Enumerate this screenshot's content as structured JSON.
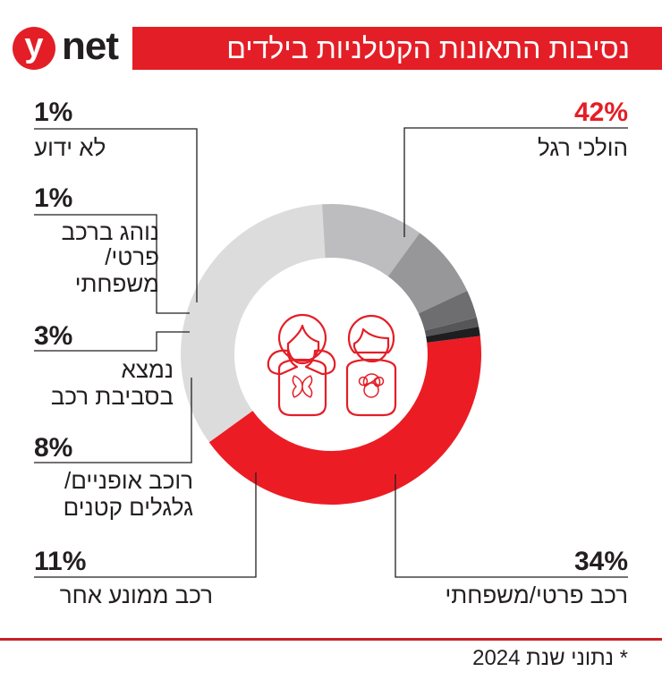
{
  "header": {
    "logo_letter": "y",
    "logo_text": "net",
    "title": "נסיבות התאונות הקטלניות בילדים"
  },
  "colors": {
    "accent_red": "#e41e26",
    "pedestrian": "#ec1c24",
    "private_car": "#dcdcdc",
    "other_motor": "#bdbdbf",
    "bicycle": "#97979a",
    "near_car": "#6e6e71",
    "driver": "#565658",
    "unknown": "#1e1e20"
  },
  "labels": {
    "unknown": {
      "pct": "1%",
      "text": "לא ידוע"
    },
    "driver": {
      "pct": "1%",
      "line1": "נוהג ברכב",
      "line2": "פרטי/",
      "line3": "משפחתי"
    },
    "near_car": {
      "pct": "3%",
      "line1": "נמצא",
      "line2": "בסביבת רכב"
    },
    "bicycle": {
      "pct": "8%",
      "line1": "רוכב אופניים/",
      "line2": "גלגלים קטנים"
    },
    "other_motor": {
      "pct": "11%",
      "text": "רכב ממונע אחר"
    },
    "pedestrian": {
      "pct": "42%",
      "text": "הולכי רגל"
    },
    "private_car": {
      "pct": "34%",
      "text": "רכב פרטי/משפחתי"
    }
  },
  "footnote": "* נתוני שנת 2024",
  "chart_data": {
    "type": "pie",
    "donut": true,
    "title": "נסיבות התאונות הקטלניות בילדים",
    "categories": [
      "הולכי רגל",
      "רכב פרטי/משפחתי",
      "רכב ממונע אחר",
      "רוכב אופניים/גלגלים קטנים",
      "נמצא בסביבת רכב",
      "נוהג ברכב פרטי/משפחתי",
      "לא ידוע"
    ],
    "values": [
      42,
      34,
      11,
      8,
      3,
      1,
      1
    ],
    "unit": "%",
    "colors": [
      "#ec1c24",
      "#dcdcdc",
      "#bdbdbf",
      "#97979a",
      "#6e6e71",
      "#565658",
      "#1e1e20"
    ],
    "center_icon": "children-icon",
    "note": "* נתוני שנת 2024"
  }
}
